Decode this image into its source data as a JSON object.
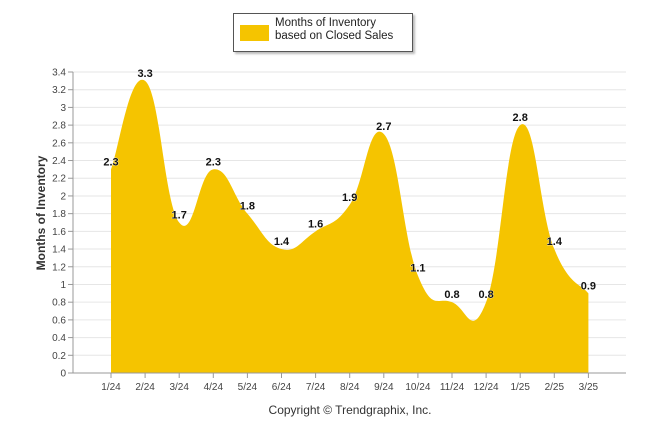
{
  "legend": {
    "label": "Months of Inventory based on Closed Sales"
  },
  "copyright": "Copyright © Trendgraphix, Inc.",
  "colors": {
    "series": "#f5c400",
    "grid": "#e6e6e6",
    "axis": "#999999"
  },
  "chart_data": {
    "type": "area",
    "categories": [
      "1/24",
      "2/24",
      "3/24",
      "4/24",
      "5/24",
      "6/24",
      "7/24",
      "8/24",
      "9/24",
      "10/24",
      "11/24",
      "12/24",
      "1/25",
      "2/25",
      "3/25"
    ],
    "series": [
      {
        "name": "Months of Inventory based on Closed Sales",
        "values": [
          2.3,
          3.3,
          1.7,
          2.3,
          1.8,
          1.4,
          1.6,
          1.9,
          2.7,
          1.1,
          0.8,
          0.8,
          2.8,
          1.4,
          0.9
        ]
      }
    ],
    "data_labels": [
      "2.3",
      "3.3",
      "1.7",
      "2.3",
      "1.8",
      "1.4",
      "1.6",
      "1.9",
      "2.7",
      "1.1",
      "0.8",
      "0.8",
      "2.8",
      "1.4",
      "0.9"
    ],
    "ylabel": "Months of Inventory",
    "xlabel": "",
    "ylim": [
      0,
      3.4
    ],
    "yticks": [
      "0",
      "0.2",
      "0.4",
      "0.6",
      "0.8",
      "1",
      "1.2",
      "1.4",
      "1.6",
      "1.8",
      "2",
      "2.2",
      "2.4",
      "2.6",
      "2.8",
      "3",
      "3.2",
      "3.4"
    ],
    "grid": true,
    "legend_position": "top-center"
  }
}
